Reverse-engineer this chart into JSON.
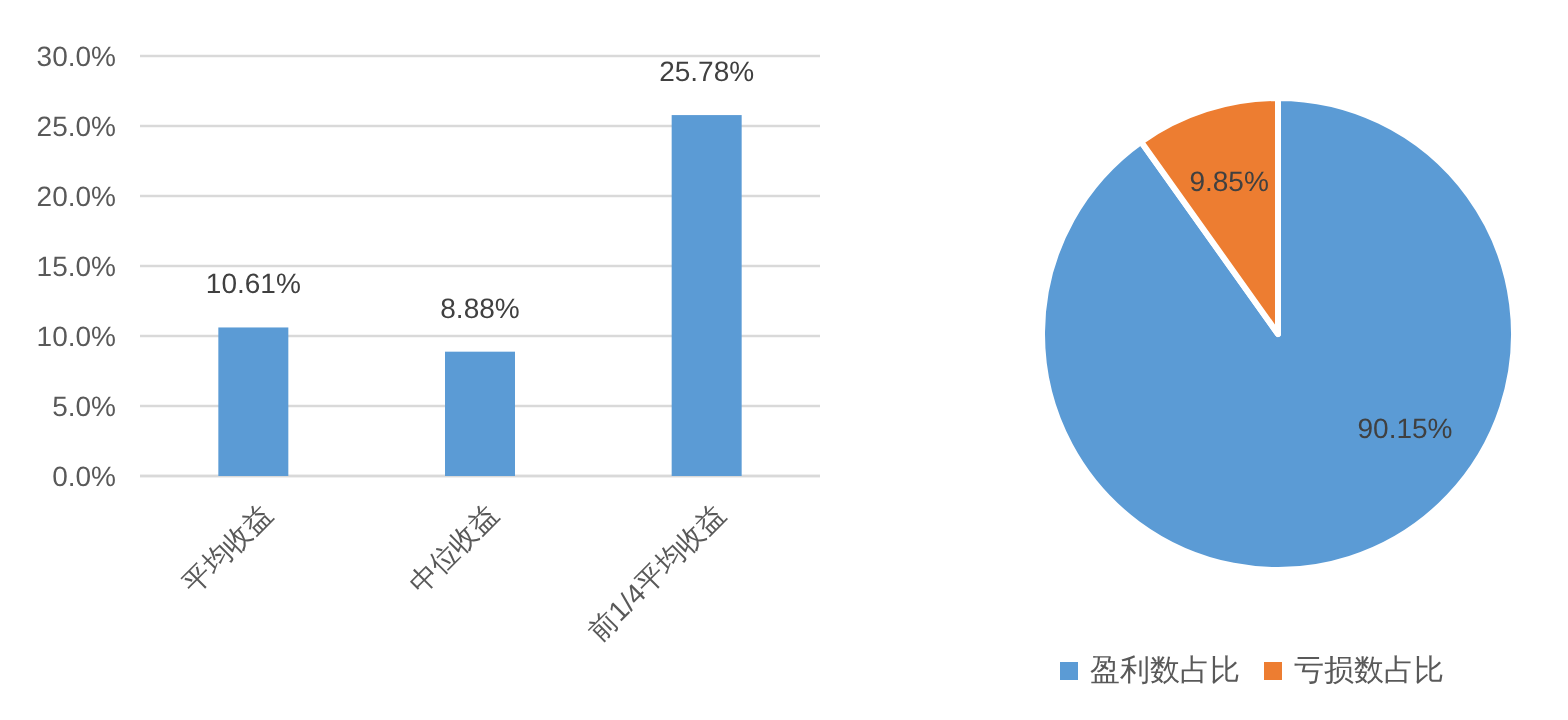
{
  "chart_data": [
    {
      "type": "bar",
      "categories": [
        "平均收益",
        "中位收益",
        "前1/4平均收益"
      ],
      "values": [
        10.61,
        8.88,
        25.78
      ],
      "color": "#5b9bd5",
      "value_labels": [
        "10.61%",
        "8.88%",
        "25.78%"
      ],
      "ylim": [
        0,
        30
      ],
      "yticks": [
        {
          "value": 0,
          "label": "0.0%"
        },
        {
          "value": 5,
          "label": "5.0%"
        },
        {
          "value": 10,
          "label": "10.0%"
        },
        {
          "value": 15,
          "label": "15.0%"
        },
        {
          "value": 20,
          "label": "20.0%"
        },
        {
          "value": 25,
          "label": "25.0%"
        },
        {
          "value": 30,
          "label": "30.0%"
        }
      ],
      "grid": "y"
    },
    {
      "type": "pie",
      "categories": [
        "盈利数占比",
        "亏损数占比"
      ],
      "values": [
        90.15,
        9.85
      ],
      "colors": [
        "#5b9bd5",
        "#ed7d31"
      ],
      "value_labels": [
        "90.15%",
        "9.85%"
      ],
      "legend": "bottom"
    }
  ]
}
